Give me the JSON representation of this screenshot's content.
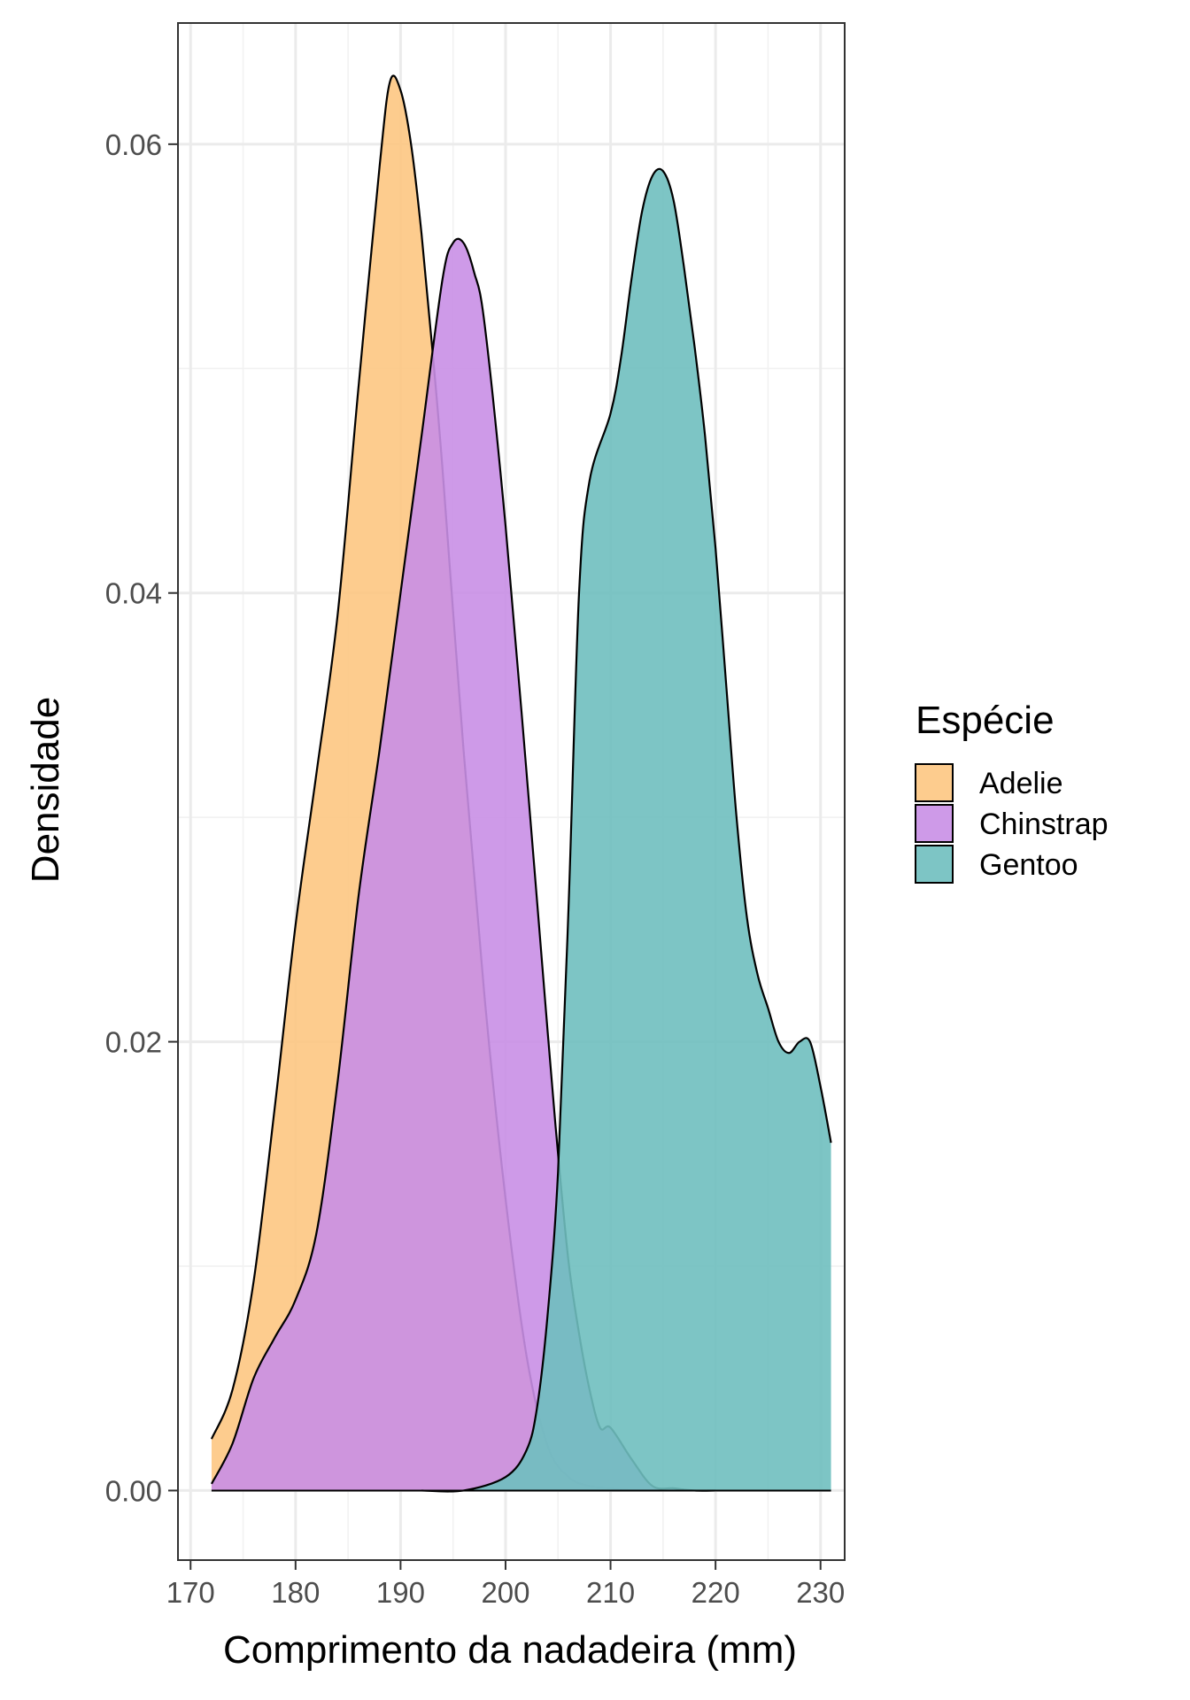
{
  "chart_data": {
    "type": "area",
    "title": "",
    "xlabel": "Comprimento da nadadeira (mm)",
    "ylabel": "Densidade",
    "xlim": [
      168.8,
      232.3
    ],
    "ylim": [
      -0.0031,
      0.0654
    ],
    "x_ticks": [
      170,
      180,
      190,
      200,
      210,
      220,
      230
    ],
    "y_ticks": [
      0.0,
      0.02,
      0.04,
      0.06
    ],
    "x_tick_labels": [
      "170",
      "180",
      "190",
      "200",
      "210",
      "220",
      "230"
    ],
    "y_tick_labels": [
      "0.00",
      "0.02",
      "0.04",
      "0.06"
    ],
    "grid": true,
    "legend": {
      "title": "Espécie",
      "position": "right"
    },
    "series": [
      {
        "name": "Adelie",
        "color": "#FDC682",
        "x": [
          172,
          174,
          176,
          178,
          180,
          182,
          184,
          186,
          188,
          189,
          190,
          191,
          192,
          193,
          194,
          196,
          198,
          200,
          202,
          204,
          206,
          208,
          210,
          212
        ],
        "y": [
          0.0023,
          0.0045,
          0.0093,
          0.017,
          0.0252,
          0.032,
          0.039,
          0.0492,
          0.059,
          0.0628,
          0.0624,
          0.06,
          0.056,
          0.051,
          0.0455,
          0.033,
          0.022,
          0.013,
          0.006,
          0.002,
          0.0006,
          0.0002,
          0.0001,
          0.0
        ]
      },
      {
        "name": "Chinstrap",
        "color": "#C98FE5",
        "x": [
          172,
          174,
          176,
          178,
          180,
          182,
          184,
          186,
          188,
          190,
          192,
          194,
          195,
          196,
          197,
          198,
          200,
          202,
          204,
          205,
          206,
          207,
          208,
          209,
          210,
          212,
          214,
          216,
          218,
          220
        ],
        "y": [
          0.0003,
          0.0021,
          0.005,
          0.0068,
          0.0085,
          0.0115,
          0.0182,
          0.0265,
          0.033,
          0.04,
          0.047,
          0.054,
          0.0556,
          0.0556,
          0.0543,
          0.052,
          0.043,
          0.032,
          0.0205,
          0.015,
          0.0102,
          0.007,
          0.0045,
          0.0028,
          0.0028,
          0.0014,
          0.0002,
          0.0001,
          0.0,
          0.0
        ]
      },
      {
        "name": "Gentoo",
        "color": "#6FBFBF",
        "x": [
          192,
          196,
          200,
          202,
          203,
          204,
          205,
          206,
          207,
          208,
          210,
          211,
          212,
          213,
          214,
          215,
          216,
          217,
          218,
          219,
          220,
          221,
          222,
          223,
          224,
          225,
          226,
          227,
          228,
          229,
          230,
          231
        ],
        "y": [
          0.0,
          0.0,
          0.0006,
          0.0018,
          0.0037,
          0.0078,
          0.0142,
          0.026,
          0.04,
          0.045,
          0.048,
          0.0505,
          0.054,
          0.057,
          0.0586,
          0.0588,
          0.0575,
          0.0545,
          0.051,
          0.047,
          0.042,
          0.036,
          0.03,
          0.0255,
          0.023,
          0.0215,
          0.02,
          0.0195,
          0.02,
          0.02,
          0.018,
          0.0155
        ]
      }
    ]
  }
}
